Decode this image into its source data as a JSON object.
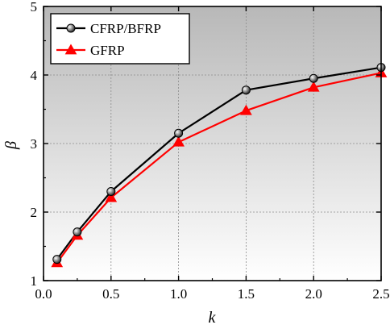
{
  "chart_data": {
    "type": "line",
    "title": "",
    "xlabel": "k",
    "ylabel": "β",
    "xlim": [
      0.0,
      2.5
    ],
    "ylim": [
      1,
      5
    ],
    "x_ticks": [
      "0.0",
      "0.5",
      "1.0",
      "1.5",
      "2.0",
      "2.5"
    ],
    "y_ticks": [
      "1",
      "2",
      "3",
      "4",
      "5"
    ],
    "grid": true,
    "legend_position": "top-left",
    "background": "vertical gradient from grey at top to white at bottom",
    "x": [
      0.1,
      0.25,
      0.5,
      1.0,
      1.5,
      2.0,
      2.5
    ],
    "series": [
      {
        "name": "CFRP/BFRP",
        "color": "#000000",
        "marker": "circle",
        "values": [
          1.31,
          1.71,
          2.3,
          3.15,
          3.78,
          3.95,
          4.11
        ]
      },
      {
        "name": "GFRP",
        "color": "#ff0000",
        "marker": "triangle",
        "values": [
          1.26,
          1.66,
          2.21,
          3.02,
          3.48,
          3.82,
          4.03
        ]
      }
    ]
  }
}
